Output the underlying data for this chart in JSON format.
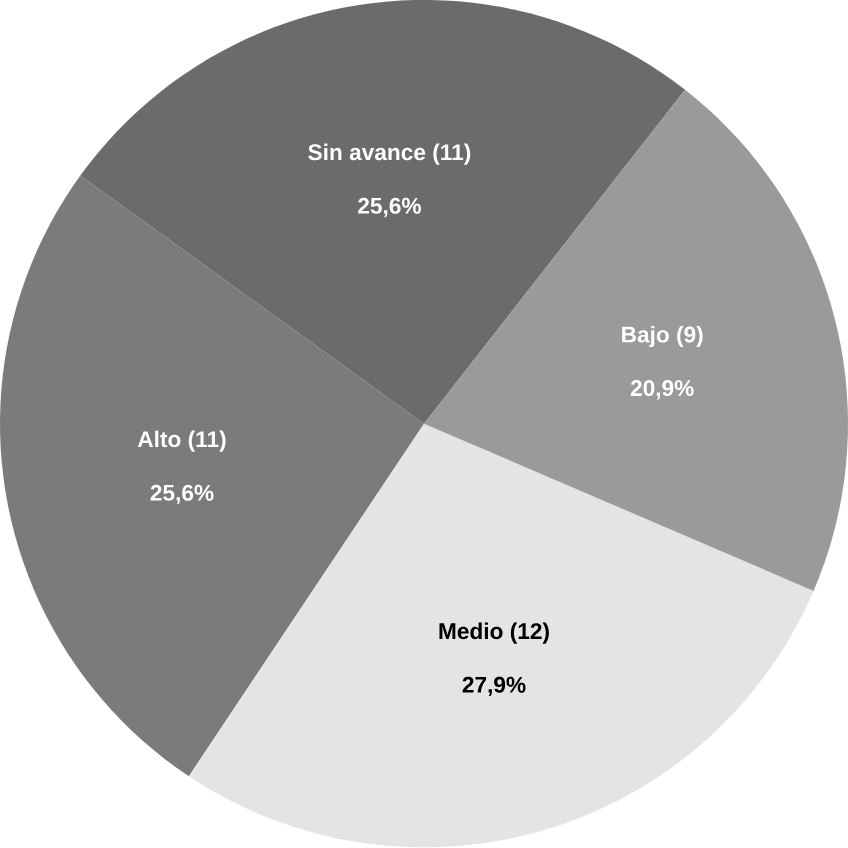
{
  "chart_data": {
    "type": "pie",
    "categories": [
      "Sin avance (11)",
      "Alto  (11)",
      "Medio (12)",
      "Bajo (9)"
    ],
    "values": [
      25.6,
      25.6,
      27.9,
      20.9
    ],
    "value_labels": [
      "25,6%",
      "25,6%",
      "27,9%",
      "20,9%"
    ],
    "colors": [
      "#6b6b6b",
      "#7b7b7b",
      "#e4e4e4",
      "#9a9a9a"
    ]
  }
}
